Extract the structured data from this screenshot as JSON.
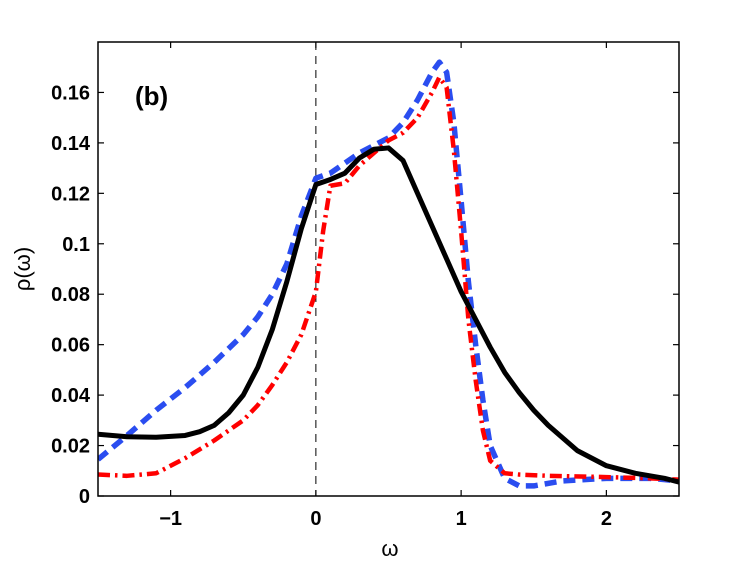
{
  "chart_data": {
    "type": "line",
    "panel_label": "(b)",
    "xlabel": "ω",
    "ylabel": "ρ(ω)",
    "xlim": [
      -1.5,
      2.5
    ],
    "ylim": [
      0,
      0.18
    ],
    "xticks": [
      -1,
      0,
      1,
      2
    ],
    "xtick_labels": [
      "−1",
      "0",
      "1",
      "2"
    ],
    "yticks": [
      0,
      0.02,
      0.04,
      0.06,
      0.08,
      0.1,
      0.12,
      0.14,
      0.16
    ],
    "ytick_labels": [
      "0",
      "0.02",
      "0.04",
      "0.06",
      "0.08",
      "0.1",
      "0.12",
      "0.14",
      "0.16"
    ],
    "reference_line": {
      "x": 0,
      "style": "dashed",
      "color": "#000000"
    },
    "grid": false,
    "series": [
      {
        "name": "black solid",
        "color": "#000000",
        "style": "solid",
        "x": [
          -1.5,
          -1.3,
          -1.1,
          -0.9,
          -0.8,
          -0.7,
          -0.6,
          -0.5,
          -0.4,
          -0.3,
          -0.2,
          -0.1,
          0,
          0.1,
          0.2,
          0.3,
          0.4,
          0.5,
          0.6,
          0.7,
          0.8,
          0.9,
          1.0,
          1.1,
          1.2,
          1.3,
          1.4,
          1.5,
          1.6,
          1.8,
          2.0,
          2.2,
          2.4,
          2.5
        ],
        "values": [
          0.0245,
          0.0235,
          0.0233,
          0.024,
          0.0255,
          0.028,
          0.033,
          0.04,
          0.051,
          0.066,
          0.085,
          0.106,
          0.1235,
          0.1255,
          0.128,
          0.134,
          0.1375,
          0.138,
          0.133,
          0.12,
          0.107,
          0.094,
          0.081,
          0.07,
          0.059,
          0.049,
          0.041,
          0.034,
          0.028,
          0.018,
          0.012,
          0.009,
          0.007,
          0.0055
        ]
      },
      {
        "name": "blue dashed",
        "color": "#2a4df0",
        "style": "dashed",
        "x": [
          -1.5,
          -1.3,
          -1.1,
          -0.9,
          -0.7,
          -0.5,
          -0.4,
          -0.3,
          -0.2,
          -0.1,
          0,
          0.1,
          0.2,
          0.3,
          0.4,
          0.5,
          0.6,
          0.7,
          0.8,
          0.85,
          0.9,
          0.95,
          1.0,
          1.05,
          1.1,
          1.15,
          1.2,
          1.3,
          1.4,
          1.5,
          1.7,
          2.0,
          2.3,
          2.5
        ],
        "values": [
          0.0145,
          0.024,
          0.034,
          0.043,
          0.053,
          0.064,
          0.071,
          0.08,
          0.092,
          0.111,
          0.126,
          0.128,
          0.132,
          0.136,
          0.139,
          0.142,
          0.148,
          0.157,
          0.168,
          0.172,
          0.168,
          0.148,
          0.117,
          0.085,
          0.06,
          0.038,
          0.02,
          0.007,
          0.004,
          0.004,
          0.006,
          0.007,
          0.007,
          0.006
        ]
      },
      {
        "name": "red dash-dot",
        "color": "#ff0000",
        "style": "dashdot",
        "x": [
          -1.5,
          -1.3,
          -1.1,
          -0.9,
          -0.7,
          -0.5,
          -0.4,
          -0.3,
          -0.2,
          -0.1,
          0,
          0.05,
          0.1,
          0.2,
          0.3,
          0.4,
          0.5,
          0.6,
          0.7,
          0.8,
          0.85,
          0.9,
          0.95,
          1.0,
          1.05,
          1.1,
          1.15,
          1.2,
          1.3,
          1.4,
          1.6,
          2.0,
          2.3,
          2.5
        ],
        "values": [
          0.0085,
          0.008,
          0.009,
          0.015,
          0.022,
          0.03,
          0.036,
          0.044,
          0.053,
          0.064,
          0.081,
          0.105,
          0.123,
          0.124,
          0.131,
          0.136,
          0.141,
          0.144,
          0.15,
          0.16,
          0.166,
          0.162,
          0.137,
          0.105,
          0.07,
          0.046,
          0.026,
          0.014,
          0.009,
          0.0085,
          0.008,
          0.0075,
          0.007,
          0.0065
        ]
      }
    ]
  }
}
